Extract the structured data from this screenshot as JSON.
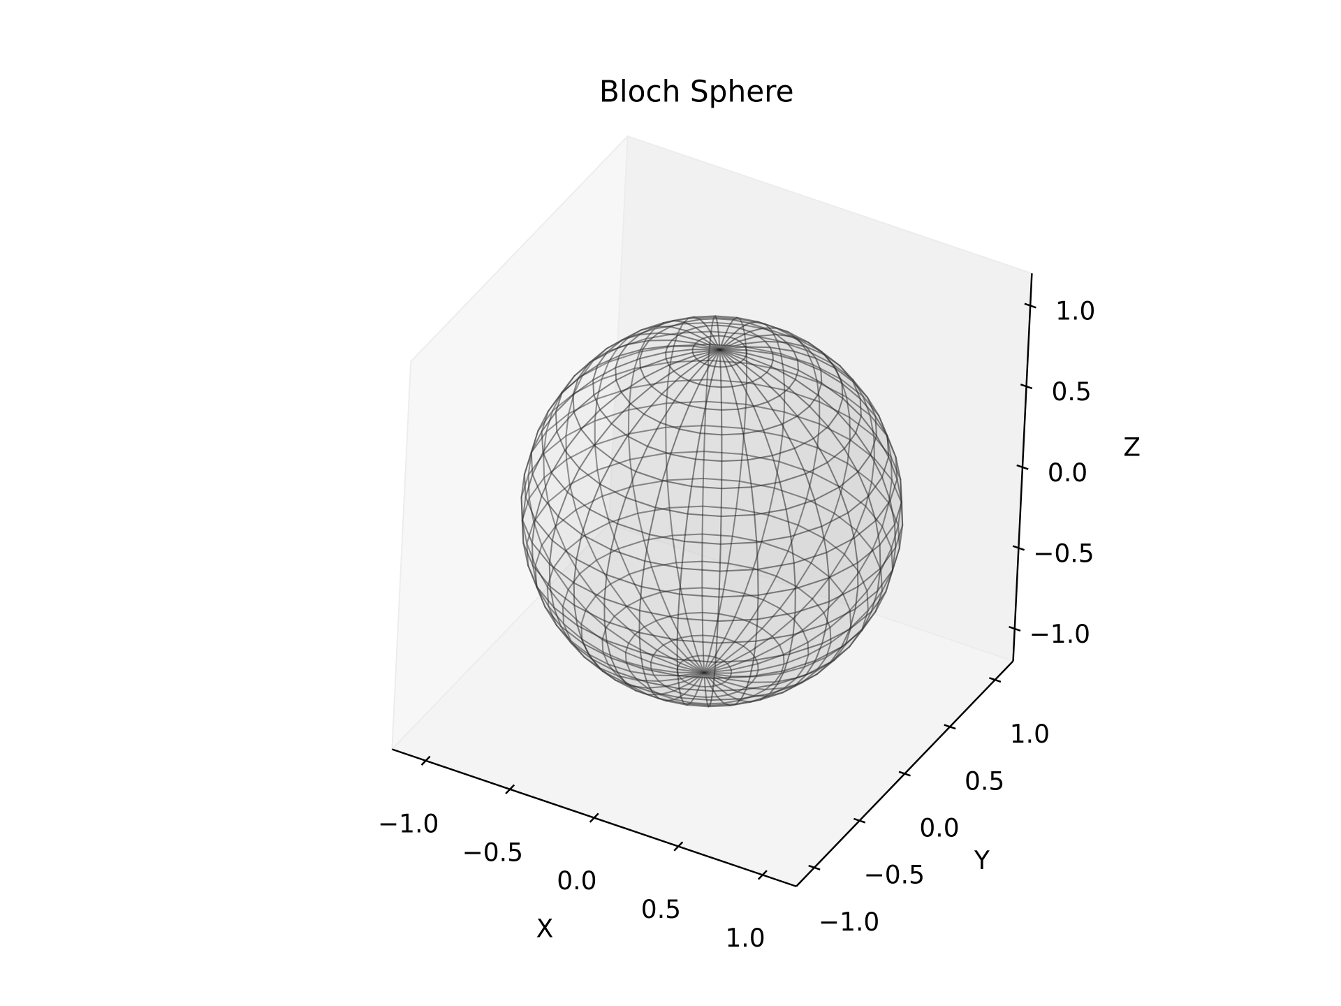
{
  "chart_data": {
    "type": "surface3d",
    "title": "Bloch Sphere",
    "xlabel": "X",
    "ylabel": "Y",
    "zlabel": "Z",
    "xlim": [
      -1.2,
      1.2
    ],
    "ylim": [
      -1.2,
      1.2
    ],
    "zlim": [
      -1.2,
      1.2
    ],
    "xticks": [
      {
        "value": -1,
        "label": "−1.0"
      },
      {
        "value": -0.5,
        "label": "−0.5"
      },
      {
        "value": 0,
        "label": "0.0"
      },
      {
        "value": 0.5,
        "label": "0.5"
      },
      {
        "value": 1,
        "label": "1.0"
      }
    ],
    "yticks": [
      {
        "value": -1,
        "label": "−1.0"
      },
      {
        "value": -0.5,
        "label": "−0.5"
      },
      {
        "value": 0,
        "label": "0.0"
      },
      {
        "value": 0.5,
        "label": "0.5"
      },
      {
        "value": 1,
        "label": "1.0"
      }
    ],
    "zticks": [
      {
        "value": -1,
        "label": "−1.0"
      },
      {
        "value": -0.5,
        "label": "−0.5"
      },
      {
        "value": 0,
        "label": "0.0"
      },
      {
        "value": 0.5,
        "label": "0.5"
      },
      {
        "value": 1,
        "label": "1.0"
      }
    ],
    "sphere": {
      "radius": 1,
      "color": "#808080"
    }
  }
}
